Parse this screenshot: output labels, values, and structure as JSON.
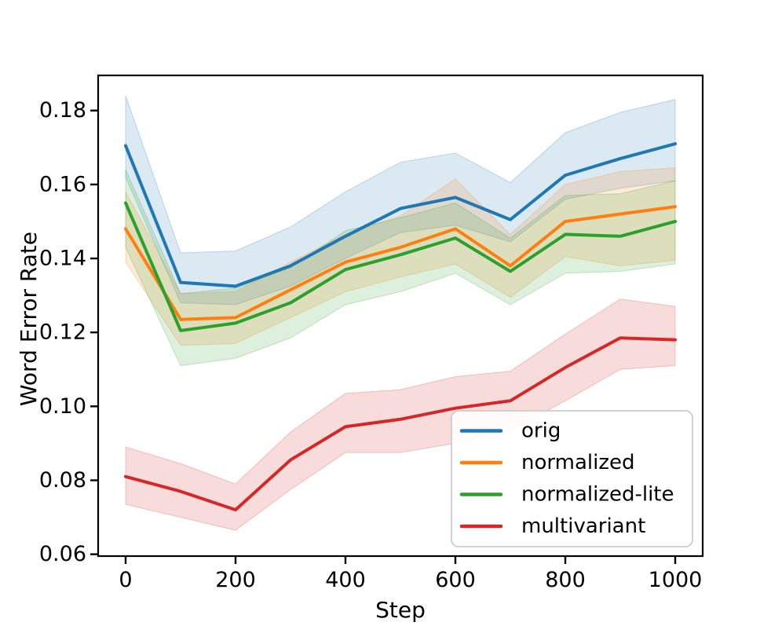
{
  "figure": {
    "background": "#ffffff",
    "frame_color": "#000000",
    "tick_color": "#000000",
    "text_color": "#000000"
  },
  "chart_data": {
    "type": "line",
    "title": "",
    "xlabel": "Step",
    "ylabel": "Word Error Rate",
    "x": [
      0,
      100,
      200,
      300,
      400,
      500,
      600,
      700,
      800,
      900,
      1000
    ],
    "x_ticks": [
      0,
      200,
      400,
      600,
      800,
      1000
    ],
    "y_ticks": [
      0.06,
      0.08,
      0.1,
      0.12,
      0.14,
      0.16,
      0.18
    ],
    "xlim": [
      -50,
      1050
    ],
    "ylim": [
      0.0595,
      0.1895
    ],
    "grid": false,
    "band_alpha": 0.16,
    "legend_position": "lower right",
    "series": [
      {
        "name": "orig",
        "color": "#1f77b4",
        "values": [
          0.1705,
          0.1335,
          0.1325,
          0.138,
          0.146,
          0.1535,
          0.1565,
          0.1505,
          0.1625,
          0.167,
          0.171
        ],
        "band_low": [
          0.162,
          0.128,
          0.1275,
          0.1325,
          0.14,
          0.147,
          0.149,
          0.1445,
          0.156,
          0.159,
          0.161
        ],
        "band_high": [
          0.184,
          0.1415,
          0.142,
          0.1485,
          0.158,
          0.166,
          0.1685,
          0.1605,
          0.174,
          0.1795,
          0.183
        ]
      },
      {
        "name": "normalized",
        "color": "#ff7f0e",
        "values": [
          0.148,
          0.1235,
          0.124,
          0.1315,
          0.139,
          0.143,
          0.148,
          0.138,
          0.15,
          0.152,
          0.154
        ],
        "band_low": [
          0.139,
          0.1165,
          0.117,
          0.124,
          0.131,
          0.135,
          0.1385,
          0.1295,
          0.1405,
          0.138,
          0.1395
        ],
        "band_high": [
          0.158,
          0.1305,
          0.131,
          0.139,
          0.1465,
          0.1515,
          0.1615,
          0.1465,
          0.16,
          0.1635,
          0.1645
        ]
      },
      {
        "name": "normalized-lite",
        "color": "#2ca02c",
        "values": [
          0.155,
          0.1205,
          0.1225,
          0.128,
          0.137,
          0.141,
          0.1455,
          0.1365,
          0.1465,
          0.146,
          0.15
        ],
        "band_low": [
          0.143,
          0.111,
          0.113,
          0.1185,
          0.1275,
          0.131,
          0.136,
          0.1275,
          0.136,
          0.1365,
          0.1385
        ],
        "band_high": [
          0.164,
          0.1305,
          0.132,
          0.1375,
          0.1475,
          0.151,
          0.155,
          0.1455,
          0.157,
          0.1575,
          0.161
        ]
      },
      {
        "name": "multivariant",
        "color": "#d62728",
        "values": [
          0.081,
          0.077,
          0.072,
          0.0855,
          0.0945,
          0.0965,
          0.0995,
          0.1015,
          0.1105,
          0.1185,
          0.118
        ],
        "band_low": [
          0.0735,
          0.07,
          0.0665,
          0.0775,
          0.0875,
          0.0875,
          0.09,
          0.0935,
          0.1015,
          0.11,
          0.111
        ],
        "band_high": [
          0.089,
          0.0845,
          0.079,
          0.093,
          0.1035,
          0.1045,
          0.108,
          0.1095,
          0.1195,
          0.129,
          0.127
        ]
      }
    ],
    "legend": {
      "border_color": "#cccccc",
      "face_color": "#ffffff",
      "labels": [
        "orig",
        "normalized",
        "normalized-lite",
        "multivariant"
      ]
    }
  }
}
